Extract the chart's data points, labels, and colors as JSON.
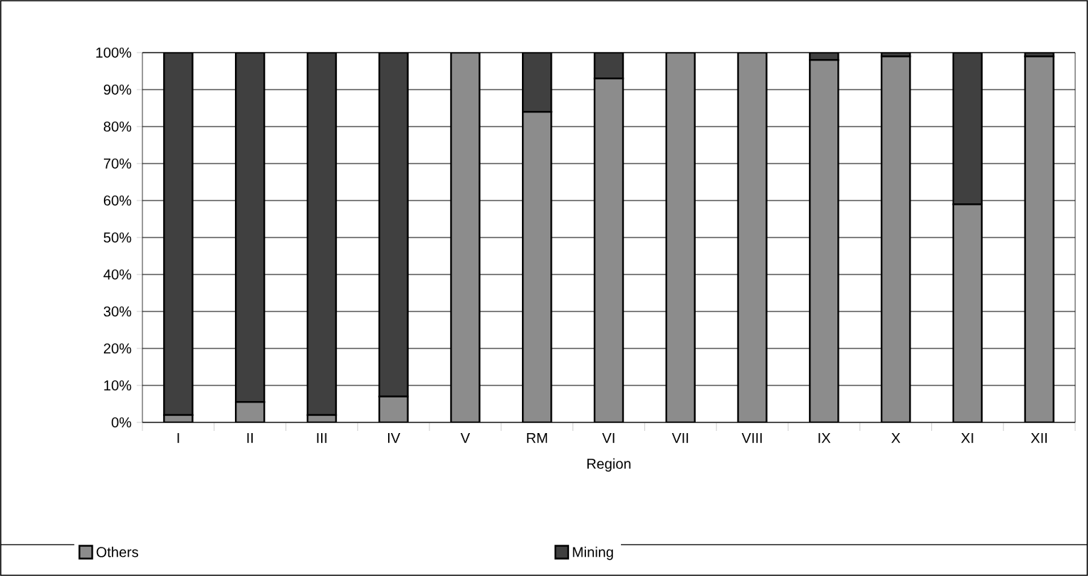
{
  "chart_data": {
    "type": "bar",
    "stacked": true,
    "xlabel": "Region",
    "categories": [
      "I",
      "II",
      "III",
      "IV",
      "V",
      "RM",
      "VI",
      "VII",
      "VIII",
      "IX",
      "X",
      "XI",
      "XII"
    ],
    "series": [
      {
        "name": "Others",
        "color": "#8c8c8c",
        "values": [
          2,
          5.5,
          2,
          7,
          100,
          84,
          93,
          100,
          100,
          98,
          99,
          59,
          99
        ]
      },
      {
        "name": "Mining",
        "color": "#404040",
        "values": [
          98,
          94.5,
          98,
          93,
          0,
          16,
          7,
          0,
          0,
          2,
          1,
          41,
          1
        ]
      }
    ],
    "ylim": [
      0,
      100
    ],
    "yticks": [
      {
        "value": 0,
        "label": "0%"
      },
      {
        "value": 10,
        "label": "10%"
      },
      {
        "value": 20,
        "label": "20%"
      },
      {
        "value": 30,
        "label": "30%"
      },
      {
        "value": 40,
        "label": "40%"
      },
      {
        "value": 50,
        "label": "50%"
      },
      {
        "value": 60,
        "label": "60%"
      },
      {
        "value": 70,
        "label": "70%"
      },
      {
        "value": 80,
        "label": "80%"
      },
      {
        "value": 90,
        "label": "90%"
      },
      {
        "value": 100,
        "label": "100%"
      }
    ],
    "grid": "y",
    "legend": "bottom"
  }
}
